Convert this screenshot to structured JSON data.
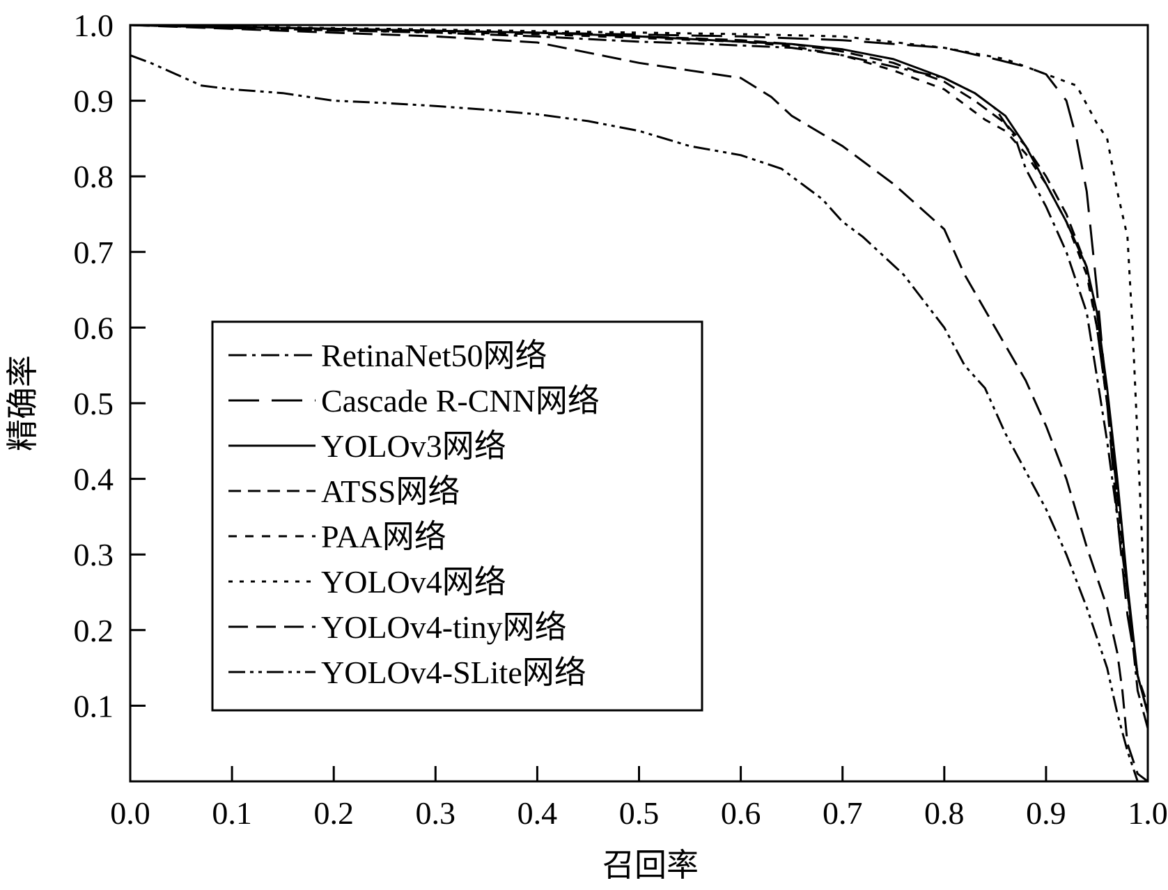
{
  "chart_data": {
    "type": "line",
    "title": "",
    "xlabel": "召回率",
    "ylabel": "精确率",
    "xlim": [
      0,
      1
    ],
    "ylim": [
      0,
      1
    ],
    "x_ticks": [
      "0.0",
      "0.1",
      "0.2",
      "0.3",
      "0.4",
      "0.5",
      "0.6",
      "0.7",
      "0.8",
      "0.9",
      "1.0"
    ],
    "y_ticks": [
      "0.1",
      "0.2",
      "0.3",
      "0.4",
      "0.5",
      "0.6",
      "0.7",
      "0.8",
      "0.9",
      "1.0"
    ],
    "grid": false,
    "legend_position": "center-left",
    "series": [
      {
        "name": "RetinaNet50网络",
        "dash": "dashdot",
        "x": [
          0,
          0.1,
          0.2,
          0.3,
          0.4,
          0.5,
          0.55,
          0.6,
          0.65,
          0.7,
          0.75,
          0.8,
          0.83,
          0.85,
          0.87,
          0.88,
          0.9,
          0.92,
          0.94,
          0.96,
          0.98,
          0.99,
          1.0
        ],
        "y": [
          1.0,
          0.996,
          0.993,
          0.99,
          0.985,
          0.978,
          0.976,
          0.973,
          0.97,
          0.96,
          0.945,
          0.93,
          0.91,
          0.89,
          0.85,
          0.81,
          0.76,
          0.7,
          0.62,
          0.45,
          0.25,
          0.12,
          0.07
        ]
      },
      {
        "name": "Cascade R-CNN网络",
        "dash": "longdash",
        "x": [
          0,
          0.2,
          0.4,
          0.6,
          0.7,
          0.8,
          0.85,
          0.88,
          0.9,
          0.92,
          0.93,
          0.94,
          0.95,
          0.96,
          0.97,
          0.98,
          0.99,
          1.0
        ],
        "y": [
          1.0,
          0.995,
          0.99,
          0.985,
          0.98,
          0.97,
          0.955,
          0.945,
          0.935,
          0.9,
          0.85,
          0.78,
          0.65,
          0.5,
          0.35,
          0.22,
          0.14,
          0.09
        ]
      },
      {
        "name": "YOLOv3网络",
        "dash": "solid",
        "x": [
          0,
          0.2,
          0.4,
          0.5,
          0.6,
          0.65,
          0.7,
          0.75,
          0.8,
          0.83,
          0.86,
          0.88,
          0.9,
          0.92,
          0.94,
          0.95,
          0.96,
          0.97,
          0.98,
          0.99,
          1.0
        ],
        "y": [
          1.0,
          0.995,
          0.99,
          0.985,
          0.978,
          0.975,
          0.968,
          0.955,
          0.93,
          0.91,
          0.88,
          0.84,
          0.79,
          0.74,
          0.68,
          0.62,
          0.52,
          0.4,
          0.26,
          0.14,
          0.09
        ]
      },
      {
        "name": "ATSS网络",
        "dash": "dash",
        "x": [
          0,
          0.2,
          0.4,
          0.6,
          0.65,
          0.7,
          0.75,
          0.8,
          0.83,
          0.86,
          0.88,
          0.9,
          0.92,
          0.94,
          0.95,
          0.96,
          0.97,
          0.98,
          0.99,
          1.0
        ],
        "y": [
          1.0,
          0.995,
          0.99,
          0.98,
          0.975,
          0.965,
          0.95,
          0.925,
          0.9,
          0.87,
          0.84,
          0.8,
          0.75,
          0.68,
          0.6,
          0.5,
          0.38,
          0.25,
          0.14,
          0.1
        ]
      },
      {
        "name": "PAA网络",
        "dash": "shortdash",
        "x": [
          0,
          0.2,
          0.4,
          0.6,
          0.65,
          0.7,
          0.75,
          0.8,
          0.82,
          0.84,
          0.86,
          0.88,
          0.9,
          0.92,
          0.94,
          0.95,
          0.96,
          0.97,
          0.98,
          0.99,
          1.0
        ],
        "y": [
          1.0,
          0.993,
          0.988,
          0.978,
          0.972,
          0.96,
          0.94,
          0.915,
          0.895,
          0.875,
          0.86,
          0.83,
          0.79,
          0.74,
          0.67,
          0.6,
          0.5,
          0.38,
          0.25,
          0.14,
          0.09
        ]
      },
      {
        "name": "YOLOv4网络",
        "dash": "dot",
        "x": [
          0,
          0.2,
          0.4,
          0.6,
          0.7,
          0.8,
          0.86,
          0.9,
          0.93,
          0.95,
          0.96,
          0.97,
          0.98,
          0.985,
          0.99,
          0.995,
          1.0
        ],
        "y": [
          1.0,
          0.996,
          0.992,
          0.988,
          0.985,
          0.97,
          0.955,
          0.935,
          0.92,
          0.87,
          0.85,
          0.78,
          0.72,
          0.6,
          0.45,
          0.3,
          0.2
        ]
      },
      {
        "name": "YOLOv4-tiny网络",
        "dash": "dashmed",
        "x": [
          0,
          0.1,
          0.2,
          0.3,
          0.4,
          0.5,
          0.55,
          0.6,
          0.63,
          0.65,
          0.7,
          0.75,
          0.8,
          0.82,
          0.85,
          0.88,
          0.9,
          0.92,
          0.94,
          0.95,
          0.96,
          0.97,
          0.975,
          0.98,
          0.99,
          1.0
        ],
        "y": [
          1.0,
          0.995,
          0.99,
          0.985,
          0.977,
          0.95,
          0.94,
          0.93,
          0.905,
          0.88,
          0.84,
          0.79,
          0.73,
          0.67,
          0.6,
          0.53,
          0.47,
          0.4,
          0.31,
          0.27,
          0.23,
          0.17,
          0.12,
          0.05,
          0.01,
          0.0
        ]
      },
      {
        "name": "YOLOv4-SLite网络",
        "dash": "dashdotdot",
        "x": [
          0,
          0.02,
          0.07,
          0.1,
          0.15,
          0.2,
          0.25,
          0.3,
          0.35,
          0.4,
          0.45,
          0.5,
          0.55,
          0.6,
          0.64,
          0.66,
          0.68,
          0.7,
          0.72,
          0.76,
          0.8,
          0.82,
          0.84,
          0.86,
          0.88,
          0.9,
          0.92,
          0.94,
          0.96,
          0.97,
          0.98,
          0.99
        ],
        "y": [
          0.96,
          0.95,
          0.92,
          0.915,
          0.91,
          0.9,
          0.897,
          0.893,
          0.888,
          0.882,
          0.873,
          0.86,
          0.84,
          0.828,
          0.81,
          0.79,
          0.77,
          0.74,
          0.72,
          0.67,
          0.6,
          0.55,
          0.52,
          0.46,
          0.41,
          0.36,
          0.3,
          0.23,
          0.15,
          0.09,
          0.04,
          0.0
        ]
      }
    ]
  }
}
